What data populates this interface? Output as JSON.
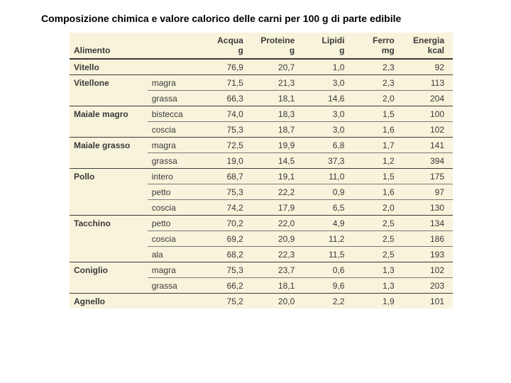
{
  "title": "Composizione chimica e valore calorico delle carni per 100 g di parte edibile",
  "table": {
    "background": "#f8f3db",
    "text_color": "#3a3a3a",
    "header": {
      "food": "Alimento",
      "cols": [
        {
          "label": "Acqua",
          "unit": "g"
        },
        {
          "label": "Proteine",
          "unit": "g"
        },
        {
          "label": "Lipidi",
          "unit": "g"
        },
        {
          "label": "Ferro",
          "unit": "mg"
        },
        {
          "label": "Energia",
          "unit": "kcal"
        }
      ]
    },
    "rows": [
      {
        "food": "Vitello",
        "sub": "",
        "vals": [
          "76,9",
          "20,7",
          "1,0",
          "2,3",
          "92"
        ],
        "group_sep": true,
        "sub_sep": false
      },
      {
        "food": "Vitellone",
        "sub": "magra",
        "vals": [
          "71,5",
          "21,3",
          "3,0",
          "2,3",
          "113"
        ],
        "group_sep": true,
        "sub_sep": false
      },
      {
        "food": "",
        "sub": "grassa",
        "vals": [
          "66,3",
          "18,1",
          "14,6",
          "2,0",
          "204"
        ],
        "group_sep": false,
        "sub_sep": true
      },
      {
        "food": "Maiale magro",
        "sub": "bistecca",
        "vals": [
          "74,0",
          "18,3",
          "3,0",
          "1,5",
          "100"
        ],
        "group_sep": true,
        "sub_sep": false
      },
      {
        "food": "",
        "sub": "coscia",
        "vals": [
          "75,3",
          "18,7",
          "3,0",
          "1,6",
          "102"
        ],
        "group_sep": false,
        "sub_sep": true
      },
      {
        "food": "Maiale grasso",
        "sub": "magra",
        "vals": [
          "72,5",
          "19,9",
          "6,8",
          "1,7",
          "141"
        ],
        "group_sep": true,
        "sub_sep": false
      },
      {
        "food": "",
        "sub": "grassa",
        "vals": [
          "19,0",
          "14,5",
          "37,3",
          "1,2",
          "394"
        ],
        "group_sep": false,
        "sub_sep": true
      },
      {
        "food": "Pollo",
        "sub": "intero",
        "vals": [
          "68,7",
          "19,1",
          "11,0",
          "1,5",
          "175"
        ],
        "group_sep": true,
        "sub_sep": false
      },
      {
        "food": "",
        "sub": "petto",
        "vals": [
          "75,3",
          "22,2",
          "0,9",
          "1,6",
          "97"
        ],
        "group_sep": false,
        "sub_sep": true
      },
      {
        "food": "",
        "sub": "coscia",
        "vals": [
          "74,2",
          "17,9",
          "6,5",
          "2,0",
          "130"
        ],
        "group_sep": false,
        "sub_sep": true
      },
      {
        "food": "Tacchino",
        "sub": "petto",
        "vals": [
          "70,2",
          "22,0",
          "4,9",
          "2,5",
          "134"
        ],
        "group_sep": true,
        "sub_sep": false
      },
      {
        "food": "",
        "sub": "coscia",
        "vals": [
          "69,2",
          "20,9",
          "11,2",
          "2,5",
          "186"
        ],
        "group_sep": false,
        "sub_sep": true
      },
      {
        "food": "",
        "sub": "ala",
        "vals": [
          "68,2",
          "22,3",
          "11,5",
          "2,5",
          "193"
        ],
        "group_sep": false,
        "sub_sep": true
      },
      {
        "food": "Coniglio",
        "sub": "magra",
        "vals": [
          "75,3",
          "23,7",
          "0,6",
          "1,3",
          "102"
        ],
        "group_sep": true,
        "sub_sep": false
      },
      {
        "food": "",
        "sub": "grassa",
        "vals": [
          "66,2",
          "18,1",
          "9,6",
          "1,3",
          "203"
        ],
        "group_sep": false,
        "sub_sep": true
      },
      {
        "food": "Agnello",
        "sub": "",
        "vals": [
          "75,2",
          "20,0",
          "2,2",
          "1,9",
          "101"
        ],
        "group_sep": true,
        "sub_sep": false
      }
    ]
  }
}
